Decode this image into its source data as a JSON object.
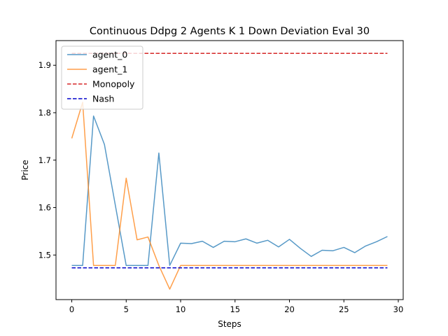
{
  "chart_data": {
    "type": "line",
    "title": "Continuous Ddpg 2 Agents K 1 Down Deviation Eval 30",
    "xlabel": "Steps",
    "ylabel": "Price",
    "xlim": [
      -1.45,
      30.45
    ],
    "ylim": [
      1.406,
      1.952
    ],
    "xticks": [
      0,
      5,
      10,
      15,
      20,
      25,
      30
    ],
    "yticks": [
      1.5,
      1.6,
      1.7,
      1.8,
      1.9
    ],
    "grid": false,
    "legend_position": "top-left",
    "x": [
      0,
      1,
      2,
      3,
      4,
      5,
      6,
      7,
      8,
      9,
      10,
      11,
      12,
      13,
      14,
      15,
      16,
      17,
      18,
      19,
      20,
      21,
      22,
      23,
      24,
      25,
      26,
      27,
      28,
      29
    ],
    "series": [
      {
        "name": "agent_0",
        "color": "#1f77b4",
        "style": "solid",
        "values": [
          1.478,
          1.478,
          1.793,
          1.733,
          1.605,
          1.478,
          1.478,
          1.478,
          1.715,
          1.478,
          1.525,
          1.524,
          1.529,
          1.516,
          1.529,
          1.528,
          1.534,
          1.525,
          1.531,
          1.517,
          1.533,
          1.514,
          1.497,
          1.51,
          1.509,
          1.516,
          1.505,
          1.519,
          1.528,
          1.539
        ]
      },
      {
        "name": "agent_1",
        "color": "#ff7f0e",
        "style": "solid",
        "values": [
          1.746,
          1.822,
          1.478,
          1.478,
          1.478,
          1.662,
          1.532,
          1.538,
          1.478,
          1.428,
          1.478,
          1.478,
          1.478,
          1.478,
          1.478,
          1.478,
          1.478,
          1.478,
          1.478,
          1.478,
          1.478,
          1.478,
          1.478,
          1.478,
          1.478,
          1.478,
          1.478,
          1.478,
          1.478,
          1.478
        ]
      },
      {
        "name": "Monopoly",
        "color": "#d62728",
        "style": "dashed",
        "constant": 1.925
      },
      {
        "name": "Nash",
        "color": "#0000cc",
        "style": "dashed",
        "constant": 1.473
      }
    ]
  }
}
